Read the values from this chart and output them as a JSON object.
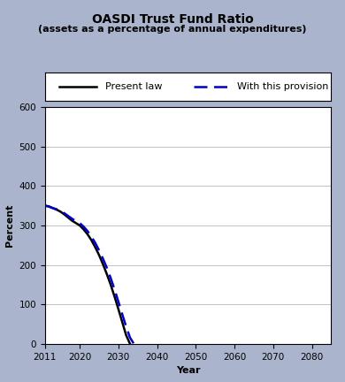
{
  "title": "OASDI Trust Fund Ratio",
  "subtitle": "(assets as a percentage of annual expenditures)",
  "xlabel": "Year",
  "ylabel": "Percent",
  "xlim": [
    2011,
    2085
  ],
  "ylim": [
    0,
    600
  ],
  "xticks": [
    2011,
    2020,
    2030,
    2040,
    2050,
    2060,
    2070,
    2080
  ],
  "yticks": [
    0,
    100,
    200,
    300,
    400,
    500,
    600
  ],
  "background_color": "#aab4cc",
  "plot_bg_color": "#ffffff",
  "present_law": {
    "x": [
      2011,
      2012,
      2013,
      2014,
      2015,
      2016,
      2017,
      2018,
      2019,
      2020,
      2021,
      2022,
      2023,
      2024,
      2025,
      2026,
      2027,
      2028,
      2029,
      2030,
      2031,
      2032,
      2033
    ],
    "y": [
      350,
      348,
      344,
      340,
      335,
      328,
      320,
      312,
      306,
      300,
      290,
      278,
      263,
      245,
      225,
      202,
      177,
      150,
      120,
      88,
      55,
      22,
      0
    ],
    "color": "#000000",
    "linestyle": "solid",
    "linewidth": 1.8,
    "label": "Present law"
  },
  "provision": {
    "x": [
      2011,
      2012,
      2013,
      2014,
      2015,
      2016,
      2017,
      2018,
      2019,
      2020,
      2021,
      2022,
      2023,
      2024,
      2025,
      2026,
      2027,
      2028,
      2029,
      2030,
      2031,
      2032,
      2033,
      2034
    ],
    "y": [
      350,
      348,
      344,
      341,
      337,
      331,
      324,
      317,
      311,
      306,
      297,
      286,
      272,
      256,
      237,
      216,
      193,
      167,
      138,
      107,
      75,
      44,
      16,
      0
    ],
    "color": "#0000cc",
    "linestyle": "dashed",
    "linewidth": 1.8,
    "label": "With this provision",
    "dashes": [
      6,
      3
    ]
  },
  "title_fontsize": 10,
  "subtitle_fontsize": 8,
  "axis_label_fontsize": 8,
  "tick_fontsize": 7.5,
  "legend_fontsize": 8
}
